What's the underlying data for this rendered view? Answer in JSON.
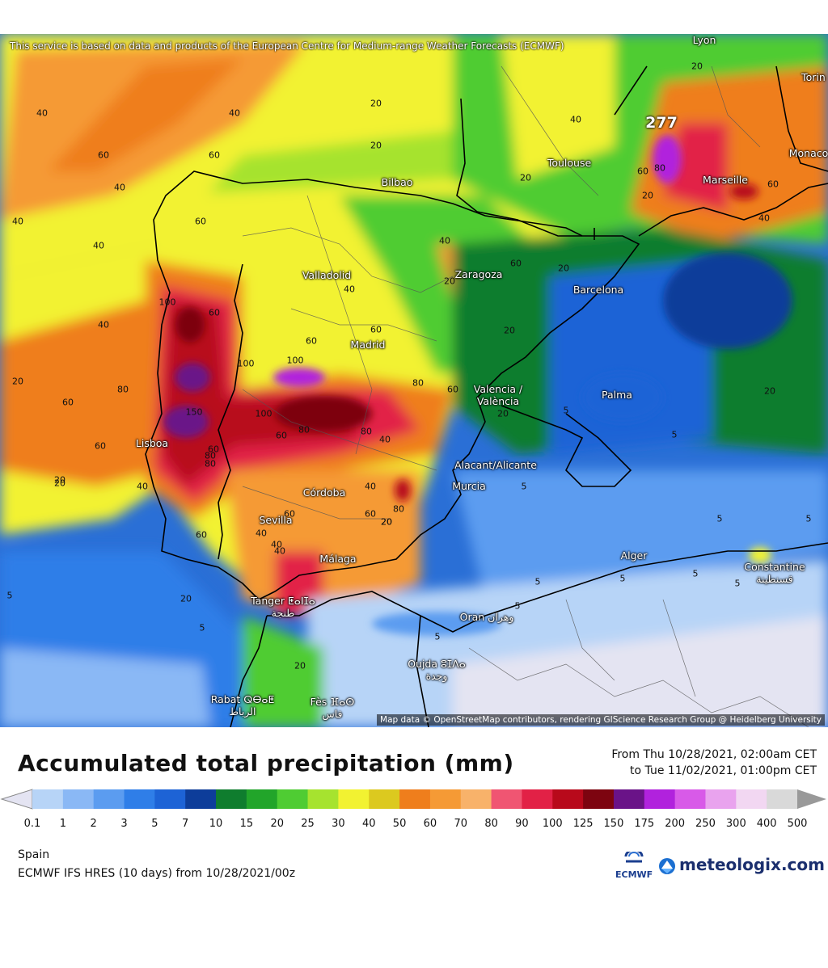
{
  "attribution": {
    "top": "This service is based on data and products of the European Centre for Medium-range Weather Forecasts (ECMWF)",
    "bottom": "Map data © OpenStreetMap contributors, rendering GIScience Research Group @ Heidelberg University"
  },
  "max_value": "277",
  "cities": [
    {
      "id": "lyon",
      "name": "Lyon"
    },
    {
      "id": "torino",
      "name": "Torin"
    },
    {
      "id": "monaco",
      "name": "Monaco"
    },
    {
      "id": "toulouse",
      "name": "Toulouse"
    },
    {
      "id": "marseille",
      "name": "Marseille"
    },
    {
      "id": "bilbao",
      "name": "Bilbao"
    },
    {
      "id": "valladolid",
      "name": "Valladolid"
    },
    {
      "id": "zaragoza",
      "name": "Zaragoza"
    },
    {
      "id": "barcelona",
      "name": "Barcelona"
    },
    {
      "id": "madrid",
      "name": "Madrid"
    },
    {
      "id": "valencia",
      "name": "Valencia / València"
    },
    {
      "id": "palma",
      "name": "Palma"
    },
    {
      "id": "lisboa",
      "name": "Lisboa"
    },
    {
      "id": "alicante",
      "name": "Alacant/Alicante"
    },
    {
      "id": "murcia",
      "name": "Murcia"
    },
    {
      "id": "cordoba",
      "name": "Córdoba"
    },
    {
      "id": "sevilla",
      "name": "Sevilla"
    },
    {
      "id": "malaga",
      "name": "Málaga"
    },
    {
      "id": "alger",
      "name": "Alger"
    },
    {
      "id": "constantine",
      "name": "Constantine قسنطينة"
    },
    {
      "id": "tanger",
      "name": "Tanger ⵟⴰⵏⵊⴰ طنجة"
    },
    {
      "id": "oran",
      "name": "Oran وهران"
    },
    {
      "id": "oujda",
      "name": "Oujda ⵓⵊⴷⴰ وجدة"
    },
    {
      "id": "rabat",
      "name": "Rabat ⵕⴱⴰⵟ الرباط"
    },
    {
      "id": "fes",
      "name": "Fès ⴼⴰⵙ فاس"
    }
  ],
  "contour_labels": [
    "40",
    "60",
    "20",
    "40",
    "40",
    "60",
    "20",
    "40",
    "20",
    "60",
    "40",
    "20",
    "40",
    "60",
    "20",
    "100",
    "60",
    "40",
    "80",
    "60",
    "100",
    "60",
    "60",
    "100",
    "150",
    "80",
    "100",
    "60",
    "80",
    "60",
    "40",
    "80",
    "60",
    "60",
    "80",
    "40",
    "80",
    "60",
    "40",
    "20",
    "20",
    "60",
    "60",
    "40",
    "80",
    "40",
    "20",
    "5",
    "40",
    "20",
    "5",
    "5",
    "20",
    "5",
    "5",
    "20",
    "20",
    "5",
    "5",
    "5",
    "5",
    "5",
    "5",
    "5",
    "5",
    "20",
    "20",
    "40",
    "60",
    "80",
    "20",
    "40",
    "60",
    "20",
    "40",
    "20"
  ],
  "legend": {
    "title": "Accumulated total precipitation (mm)",
    "from": "From Thu 10/28/2021, 02:00am CET",
    "to": "to Tue 11/02/2021, 01:00pm CET",
    "thresholds": [
      "0.1",
      "1",
      "2",
      "3",
      "5",
      "7",
      "10",
      "15",
      "20",
      "25",
      "30",
      "40",
      "50",
      "60",
      "70",
      "80",
      "90",
      "100",
      "125",
      "150",
      "175",
      "200",
      "250",
      "300",
      "400",
      "500"
    ],
    "colors": [
      "#e4e4f2",
      "#b7d4f7",
      "#8ab8f5",
      "#5b9cf0",
      "#2f7ee8",
      "#1d63d6",
      "#0d3d9a",
      "#0f7d2e",
      "#22a52a",
      "#4fcc33",
      "#a6e32f",
      "#f2f231",
      "#dcc91f",
      "#ef7e1c",
      "#f59a35",
      "#f8b26a",
      "#f05572",
      "#e22146",
      "#b8091b",
      "#7d0410",
      "#6a1388",
      "#b122dd",
      "#d85ae8",
      "#e9a3ee",
      "#f2d7f2",
      "#d9d9d9",
      "#999999"
    ]
  },
  "footer": {
    "region": "Spain",
    "model_run": "ECMWF IFS HRES (10 days) from 10/28/2021/00z",
    "ecmwf": "ECMWF",
    "brand": "meteologix.com"
  }
}
